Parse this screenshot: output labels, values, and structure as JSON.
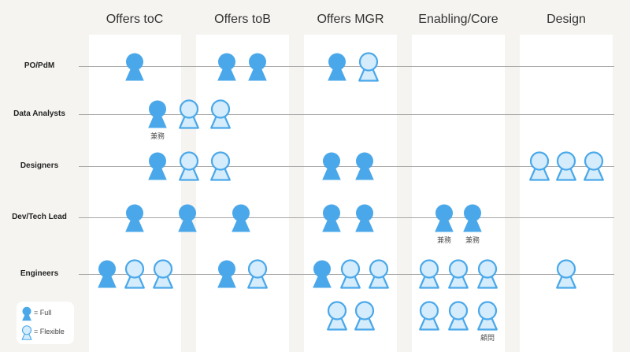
{
  "columns": [
    "Offers toC",
    "Offers toB",
    "Offers MGR",
    "Enabling/Core",
    "Design"
  ],
  "rows": [
    "PO/PdM",
    "Data Analysts",
    "Designers",
    "Dev/Tech Lead",
    "Engineers"
  ],
  "colors": {
    "full_fill": "#4aa8ea",
    "flexible_fill": "#d4ecfb",
    "flexible_stroke": "#4aa8ea",
    "column_background": "#ffffff",
    "page_background": "#f5f4f0",
    "row_line": "#a8a8a8"
  },
  "annotations": {
    "kenmu": "兼務",
    "komon": "顧問"
  },
  "legend": {
    "full_label": "= Full",
    "flexible_label": "= Flexible"
  }
}
